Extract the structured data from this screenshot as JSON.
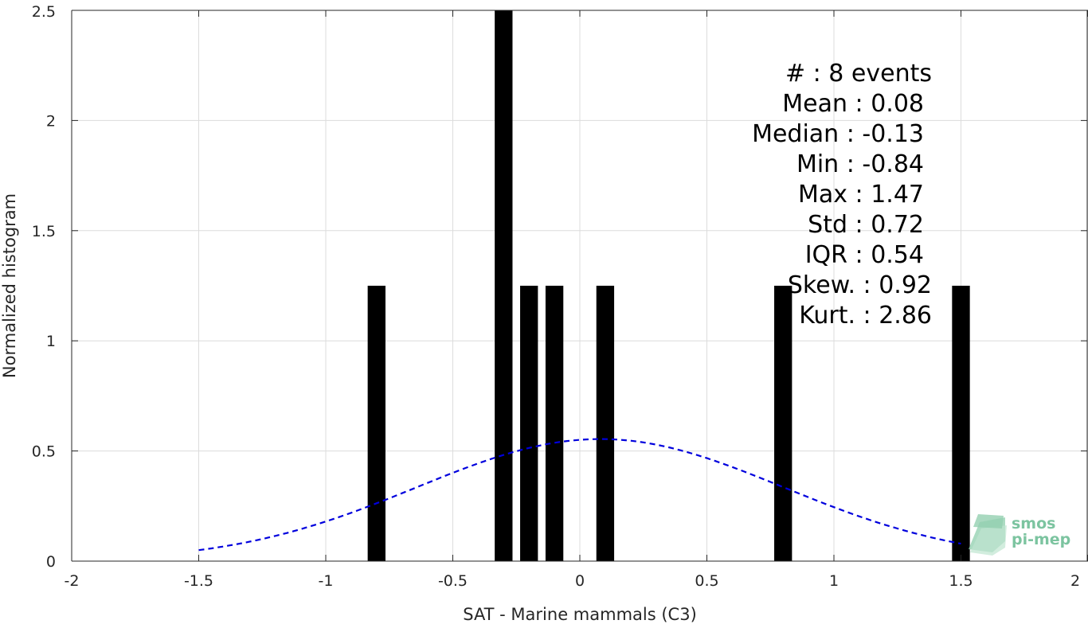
{
  "chart_data": {
    "type": "bar",
    "xlabel": "SAT - Marine mammals (C3)",
    "ylabel": "Normalized histogram",
    "xlim": [
      -2,
      2
    ],
    "ylim": [
      0,
      2.5
    ],
    "xticks": [
      -2,
      -1.5,
      -1,
      -0.5,
      0,
      0.5,
      1,
      1.5,
      2
    ],
    "xtick_labels": [
      "-2",
      "-1.5",
      "-1",
      "-0.5",
      "0",
      "0.5",
      "1",
      "1.5",
      "2"
    ],
    "yticks": [
      0,
      0.5,
      1,
      1.5,
      2,
      2.5
    ],
    "ytick_labels": [
      "0",
      "0.5",
      "1",
      "1.5",
      "2",
      "2.5"
    ],
    "grid": true,
    "bar_width": 0.07,
    "bars": [
      {
        "x": -0.8,
        "value": 1.25
      },
      {
        "x": -0.3,
        "value": 2.5
      },
      {
        "x": -0.2,
        "value": 1.25
      },
      {
        "x": -0.1,
        "value": 1.25
      },
      {
        "x": 0.1,
        "value": 1.25
      },
      {
        "x": 0.8,
        "value": 1.25
      },
      {
        "x": 1.5,
        "value": 1.25
      }
    ],
    "fit_curve": {
      "style": "dashed",
      "color": "#0000dd",
      "mean": 0.08,
      "std": 0.72,
      "x_range": [
        -1.5,
        1.5
      ]
    },
    "bar_color": "#000000",
    "stats": [
      "#  : 8 events",
      "Mean : 0.08",
      "Median : -0.13",
      "Min : -0.84",
      "Max : 1.47",
      "Std : 0.72",
      "IQR : 0.54",
      "Skew. : 0.92",
      "Kurt. : 2.86"
    ]
  },
  "logo": {
    "line1": "smos",
    "line2": "pi-mep",
    "color": "#7cc4a0"
  }
}
